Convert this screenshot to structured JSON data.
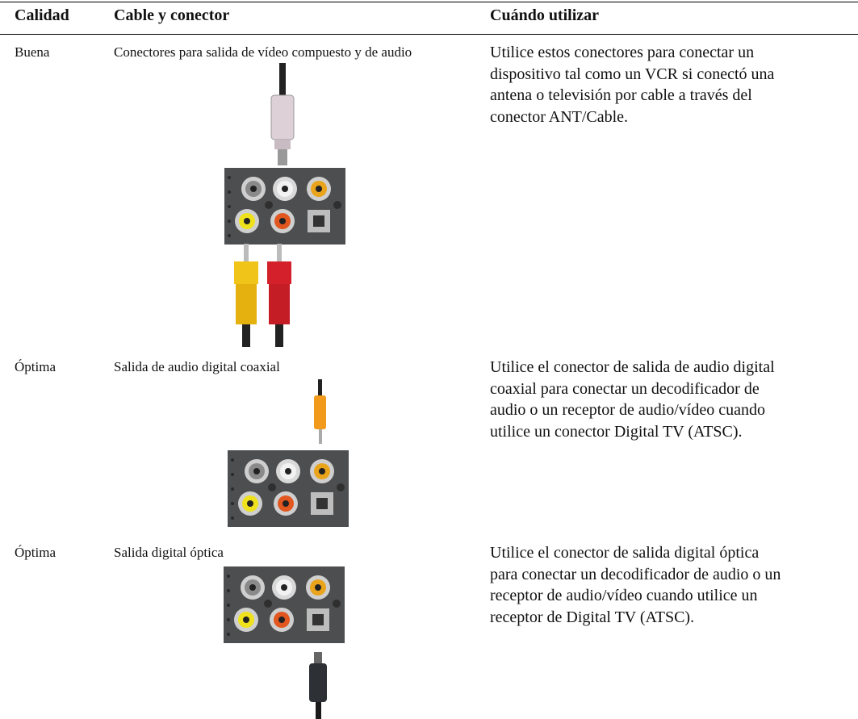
{
  "table": {
    "header": [
      "Calidad",
      "Cable y conector",
      "Cuándo utilizar"
    ],
    "rows": [
      [
        "Buena",
        "Conectores para salida de vídeo compuesto y de audio",
        [
          "Utilice estos conectores para conectar un",
          "dispositivo tal como un VCR si conectó una",
          "antena o televisión por cable a través del",
          "conector ANT/Cable."
        ]
      ],
      [
        "Óptima",
        "Salida de audio digital coaxial",
        [
          "Utilice el conector de salida de audio digital",
          "coaxial para conectar un decodificador de",
          "audio o un receptor de audio/vídeo cuando",
          "utilice un conector Digital TV (ATSC)."
        ]
      ],
      [
        "Óptima",
        "Salida digital óptica",
        [
          "Utilice el conector de salida digital óptica",
          "para conectar un decodificador de audio o un",
          "receptor de audio/vídeo cuando utilice un",
          "receptor de Digital TV (ATSC)."
        ]
      ]
    ]
  }
}
